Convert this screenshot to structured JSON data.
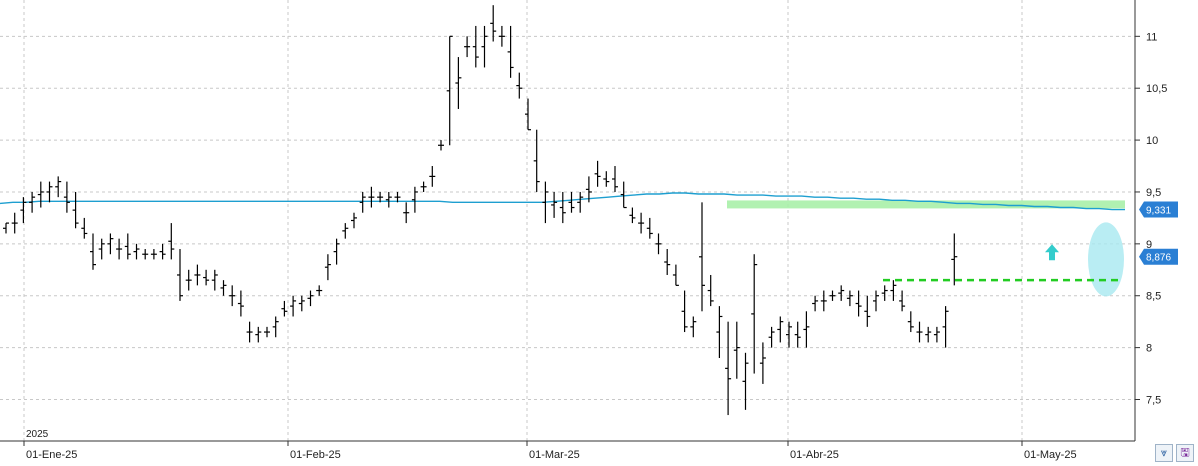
{
  "chart_data": {
    "type": "ohlc",
    "year_label": "2025",
    "y_ticks": [
      "11",
      "10,5",
      "10",
      "9,5",
      "9",
      "8,5",
      "8",
      "7,5"
    ],
    "y_tick_values": [
      11,
      10.5,
      10,
      9.5,
      9,
      8.5,
      8,
      7.5
    ],
    "ylim": [
      7.1,
      11.35
    ],
    "x_ticks": [
      "01-Ene-25",
      "01-Feb-25",
      "01-Mar-25",
      "01-Abr-25",
      "01-May-25"
    ],
    "grid": true,
    "moving_average": {
      "color": "#1e9fd0",
      "last_value": 9.331,
      "last_label": "9,331",
      "values": [
        9.39,
        9.4,
        9.4,
        9.41,
        9.41,
        9.41,
        9.41,
        9.41,
        9.41,
        9.41,
        9.41,
        9.41,
        9.41,
        9.41,
        9.41,
        9.41,
        9.41,
        9.41,
        9.41,
        9.41,
        9.41,
        9.41,
        9.41,
        9.41,
        9.41,
        9.41,
        9.41,
        9.41,
        9.41,
        9.41,
        9.41,
        9.41,
        9.41,
        9.41,
        9.41,
        9.4,
        9.4,
        9.4,
        9.4,
        9.4,
        9.4,
        9.4,
        9.4,
        9.41,
        9.42,
        9.43,
        9.44,
        9.45,
        9.46,
        9.47,
        9.48,
        9.48,
        9.49,
        9.49,
        9.48,
        9.48,
        9.48,
        9.47,
        9.47,
        9.47,
        9.46,
        9.46,
        9.46,
        9.45,
        9.45,
        9.44,
        9.44,
        9.43,
        9.43,
        9.42,
        9.42,
        9.41,
        9.41,
        9.4,
        9.39,
        9.39,
        9.38,
        9.38,
        9.37,
        9.37,
        9.36,
        9.36,
        9.35,
        9.35,
        9.34,
        9.34,
        9.33,
        9.33
      ]
    },
    "last_price": {
      "value": 8.876,
      "label": "8,876",
      "color": "#2a7fd4"
    },
    "support_line": {
      "value": 8.65,
      "color": "#22cc22",
      "style": "dashed"
    },
    "resistance_zone": {
      "value": 9.38,
      "color": "#a8f0a8"
    },
    "arrow": {
      "value": 8.9,
      "color": "#33cccc",
      "direction": "up"
    },
    "highlight_ellipse": {
      "value": 8.85,
      "color": "#a8e8f0"
    },
    "bars": [
      [
        9.2,
        9.1,
        9.2
      ],
      [
        9.3,
        9.1,
        9.2
      ],
      [
        9.45,
        9.2,
        9.4
      ],
      [
        9.5,
        9.3,
        9.45
      ],
      [
        9.6,
        9.35,
        9.5
      ],
      [
        9.6,
        9.4,
        9.55
      ],
      [
        9.65,
        9.45,
        9.6
      ],
      [
        9.6,
        9.3,
        9.4
      ],
      [
        9.5,
        9.15,
        9.2
      ],
      [
        9.25,
        9.05,
        9.1
      ],
      [
        9.1,
        8.75,
        8.8
      ],
      [
        9.05,
        8.85,
        9.0
      ],
      [
        9.1,
        8.9,
        9.05
      ],
      [
        9.05,
        8.85,
        8.95
      ],
      [
        9.1,
        8.85,
        8.9
      ],
      [
        9.0,
        8.85,
        8.95
      ],
      [
        8.95,
        8.85,
        8.9
      ],
      [
        8.95,
        8.85,
        8.9
      ],
      [
        9.0,
        8.85,
        8.9
      ],
      [
        9.2,
        8.85,
        8.95
      ],
      [
        8.95,
        8.45,
        8.5
      ],
      [
        8.75,
        8.55,
        8.65
      ],
      [
        8.8,
        8.6,
        8.7
      ],
      [
        8.75,
        8.6,
        8.65
      ],
      [
        8.75,
        8.55,
        8.7
      ],
      [
        8.65,
        8.5,
        8.6
      ],
      [
        8.6,
        8.4,
        8.5
      ],
      [
        8.55,
        8.3,
        8.4
      ],
      [
        8.25,
        8.05,
        8.15
      ],
      [
        8.2,
        8.05,
        8.15
      ],
      [
        8.2,
        8.1,
        8.15
      ],
      [
        8.3,
        8.1,
        8.25
      ],
      [
        8.45,
        8.3,
        8.35
      ],
      [
        8.5,
        8.3,
        8.45
      ],
      [
        8.5,
        8.35,
        8.45
      ],
      [
        8.55,
        8.4,
        8.5
      ],
      [
        8.6,
        8.5,
        8.55
      ],
      [
        8.9,
        8.65,
        8.8
      ],
      [
        9.05,
        8.8,
        9.0
      ],
      [
        9.2,
        9.05,
        9.15
      ],
      [
        9.3,
        9.15,
        9.25
      ],
      [
        9.5,
        9.3,
        9.45
      ],
      [
        9.55,
        9.35,
        9.45
      ],
      [
        9.5,
        9.4,
        9.45
      ],
      [
        9.5,
        9.35,
        9.45
      ],
      [
        9.5,
        9.4,
        9.45
      ],
      [
        9.4,
        9.2,
        9.3
      ],
      [
        9.55,
        9.3,
        9.5
      ],
      [
        9.6,
        9.5,
        9.55
      ],
      [
        9.75,
        9.55,
        9.65
      ],
      [
        10.0,
        9.9,
        9.95
      ],
      [
        11.0,
        9.95,
        11.0
      ],
      [
        10.8,
        10.3,
        10.6
      ],
      [
        11.0,
        10.8,
        10.9
      ],
      [
        11.1,
        10.7,
        10.8
      ],
      [
        11.1,
        10.7,
        11.0
      ],
      [
        11.3,
        10.95,
        11.05
      ],
      [
        11.1,
        10.9,
        11.0
      ],
      [
        11.1,
        10.6,
        10.7
      ],
      [
        10.65,
        10.4,
        10.5
      ],
      [
        10.4,
        10.1,
        10.1
      ],
      [
        10.1,
        9.5,
        9.6
      ],
      [
        9.6,
        9.2,
        9.5
      ],
      [
        9.5,
        9.25,
        9.4
      ],
      [
        9.5,
        9.2,
        9.3
      ],
      [
        9.5,
        9.3,
        9.35
      ],
      [
        9.5,
        9.3,
        9.45
      ],
      [
        9.65,
        9.4,
        9.5
      ],
      [
        9.8,
        9.55,
        9.65
      ],
      [
        9.7,
        9.55,
        9.6
      ],
      [
        9.75,
        9.5,
        9.55
      ],
      [
        9.6,
        9.35,
        9.35
      ],
      [
        9.35,
        9.2,
        9.25
      ],
      [
        9.3,
        9.1,
        9.2
      ],
      [
        9.25,
        9.05,
        9.1
      ],
      [
        9.1,
        8.9,
        9.0
      ],
      [
        8.95,
        8.7,
        8.8
      ],
      [
        8.8,
        8.6,
        8.6
      ],
      [
        8.55,
        8.15,
        8.2
      ],
      [
        8.3,
        8.1,
        8.25
      ],
      [
        9.4,
        8.35,
        8.6
      ],
      [
        8.7,
        8.4,
        8.45
      ],
      [
        8.4,
        7.9,
        8.3
      ],
      [
        8.25,
        7.35,
        7.7
      ],
      [
        8.25,
        7.7,
        8.0
      ],
      [
        7.95,
        7.4,
        7.85
      ],
      [
        8.9,
        7.75,
        8.8
      ],
      [
        8.05,
        7.65,
        7.9
      ],
      [
        8.2,
        8.0,
        8.15
      ],
      [
        8.3,
        8.05,
        8.25
      ],
      [
        8.25,
        8.0,
        8.2
      ],
      [
        8.25,
        8.0,
        8.1
      ],
      [
        8.35,
        8.0,
        8.2
      ],
      [
        8.5,
        8.35,
        8.45
      ],
      [
        8.55,
        8.35,
        8.45
      ],
      [
        8.55,
        8.45,
        8.5
      ],
      [
        8.6,
        8.45,
        8.55
      ],
      [
        8.55,
        8.4,
        8.5
      ],
      [
        8.55,
        8.3,
        8.4
      ],
      [
        8.5,
        8.2,
        8.3
      ],
      [
        8.55,
        8.35,
        8.5
      ],
      [
        8.6,
        8.45,
        8.55
      ],
      [
        8.65,
        8.45,
        8.6
      ],
      [
        8.55,
        8.35,
        8.4
      ],
      [
        8.35,
        8.15,
        8.2
      ],
      [
        8.25,
        8.05,
        8.15
      ],
      [
        8.2,
        8.05,
        8.15
      ],
      [
        8.2,
        8.05,
        8.15
      ],
      [
        8.4,
        8.0,
        8.35
      ],
      [
        9.1,
        8.6,
        8.876
      ]
    ]
  },
  "buttons": {
    "collapse_icon": "chevrons-down-icon",
    "save_icon": "save-icon"
  }
}
